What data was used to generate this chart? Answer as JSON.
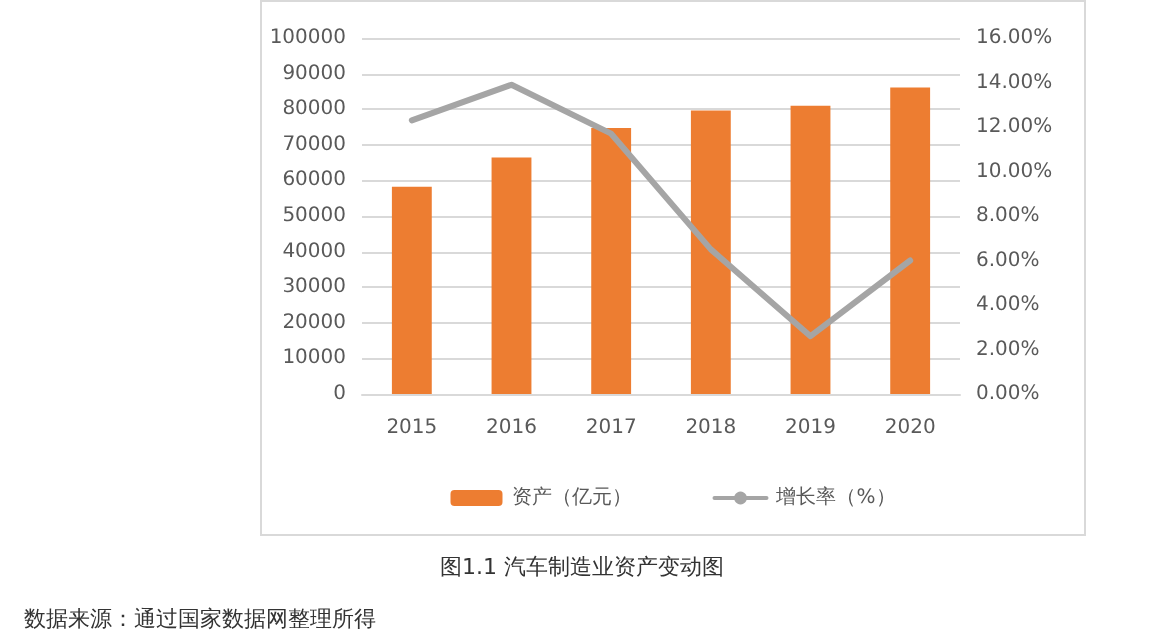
{
  "chart_data": {
    "type": "bar",
    "title": "图1.1 汽车制造业资产变动图",
    "annotations": [
      "数据来源：通过国家数据网整理所得"
    ],
    "categories": [
      "2015",
      "2016",
      "2017",
      "2018",
      "2019",
      "2020"
    ],
    "series": [
      {
        "name": "资产（亿元）",
        "color": "#ed7d31",
        "values": [
          58200,
          66400,
          74700,
          79600,
          81000,
          86100
        ]
      },
      {
        "name": "增长率（%）",
        "type": "line",
        "axis": "y2",
        "color": "#a5a5a5",
        "values": [
          12.3,
          13.9,
          11.7,
          6.5,
          2.6,
          6.0
        ]
      }
    ],
    "ylim": [
      0,
      100000
    ],
    "yticks": [
      0,
      10000,
      20000,
      30000,
      40000,
      50000,
      60000,
      70000,
      80000,
      90000,
      100000
    ],
    "y2lim": [
      0,
      16
    ],
    "y2ticks": [
      {
        "value": 0,
        "label": "0.00%"
      },
      {
        "value": 2,
        "label": "2.00%"
      },
      {
        "value": 4,
        "label": "4.00%"
      },
      {
        "value": 6,
        "label": "6.00%"
      },
      {
        "value": 8,
        "label": "8.00%"
      },
      {
        "value": 10,
        "label": "10.00%"
      },
      {
        "value": 12,
        "label": "12.00%"
      },
      {
        "value": 14,
        "label": "14.00%"
      },
      {
        "value": 16,
        "label": "16.00%"
      }
    ],
    "grid": "y",
    "legend": "bottom",
    "marker": "none"
  }
}
